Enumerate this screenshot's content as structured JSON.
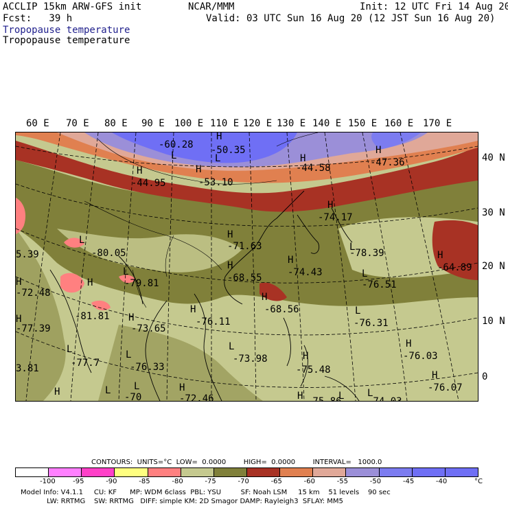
{
  "header": {
    "model": "ACCLIP 15km ARW-GFS init",
    "org": "NCAR/MMM",
    "init": "Init: 12 UTC Fri 14 Aug 20",
    "fcst": "Fcst:   39 h",
    "valid": "Valid: 03 UTC Sun 16 Aug 20 (12 JST Sun 16 Aug 20)",
    "field_colored": "Tropopause temperature",
    "field_black": "Tropopause temperature"
  },
  "colors": {
    "band_lt_-95": "#ffffff",
    "band_-100": "#ff80ff",
    "band_-95": "#ff40c8",
    "band_-90": "#ffff80",
    "band_-85": "#ff8080",
    "band_-80": "#c5c98f",
    "band_-75": "#80803a",
    "band_-70": "#a83224",
    "band_-65": "#e08050",
    "band_-60": "#e0a898",
    "band_-55": "#9b8fd8",
    "band_-50": "#7c7cf0",
    "band_-45": "#6f6ff5"
  },
  "map": {
    "lon_labels": [
      "60 E",
      "70 E",
      "80 E",
      "90 E",
      "100 E",
      "110 E",
      "120 E",
      "130 E",
      "140 E",
      "150 E",
      "160 E",
      "170 E"
    ],
    "lat_labels": [
      "40 N",
      "30 N",
      "20 N",
      "10 N",
      "0"
    ],
    "labels": [
      {
        "text": "-60.28"
      },
      {
        "text": "-50.35"
      },
      {
        "text": "-44.95"
      },
      {
        "text": "-53.10"
      },
      {
        "text": "-44.58"
      },
      {
        "text": "-47.36"
      },
      {
        "text": "-74.17"
      },
      {
        "text": "-80.05"
      },
      {
        "text": "-71.63"
      },
      {
        "text": "-78.39"
      },
      {
        "text": "-64.89"
      },
      {
        "text": "-74.43"
      },
      {
        "text": "-68.55"
      },
      {
        "text": "-79.81"
      },
      {
        "text": "-76.51"
      },
      {
        "text": "-72.48"
      },
      {
        "text": "-68.56"
      },
      {
        "text": "-81.81"
      },
      {
        "text": "-76.11"
      },
      {
        "text": "-76.31"
      },
      {
        "text": "-77.39"
      },
      {
        "text": "-73.65"
      },
      {
        "text": "-76.03"
      },
      {
        "text": "-77.7"
      },
      {
        "text": "-76.33"
      },
      {
        "text": "-73.98"
      },
      {
        "text": "-75.48"
      },
      {
        "text": "-76.07"
      },
      {
        "text": "-72.46"
      },
      {
        "text": "-75.86"
      },
      {
        "text": "-74.03"
      },
      {
        "text": "3.81"
      },
      {
        "text": "5.39"
      },
      {
        "text": "-70"
      }
    ],
    "h_marks": 22,
    "l_marks": 14
  },
  "contours": {
    "line": "CONTOURS:  UNITS=°C  LOW=  0.0000        HIGH=  0.0000        INTERVAL=   1000.0"
  },
  "colorbar": {
    "ticks": [
      "-100",
      "-95",
      "-90",
      "-85",
      "-80",
      "-75",
      "-70",
      "-65",
      "-60",
      "-55",
      "-50",
      "-45",
      "-40",
      "°C"
    ]
  },
  "footer": {
    "line1": "Model Info: V4.1.1     CU: KF      MP: WDM 6class  PBL: YSU         SF: Noah LSM     15 km    51 levels    90 sec",
    "line2": "            LW: RRTMG    SW: RRTMG   DIFF: simple KM: 2D Smagor DAMP: Rayleigh3  SFLAY: MM5"
  }
}
